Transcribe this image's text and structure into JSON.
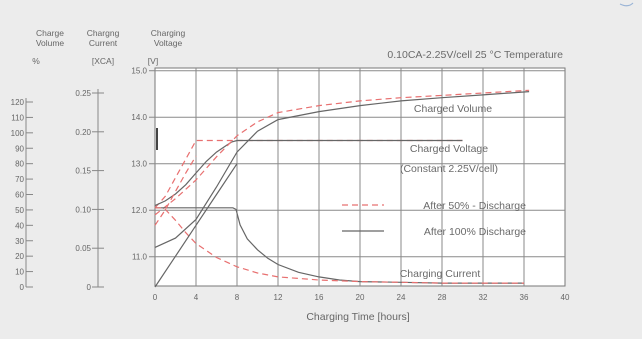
{
  "chart_data": {
    "type": "line",
    "title": "0.10CA-2.25V/cell 25 °C Temperature",
    "xlabel": "Charging Time [hours]",
    "x_ticks": [
      0,
      4,
      8,
      12,
      16,
      20,
      24,
      28,
      32,
      36,
      40
    ],
    "xlim": [
      0,
      40
    ],
    "grid": true,
    "axes": {
      "volume": {
        "head": [
          "Charge",
          "Volume",
          "%"
        ],
        "ticks": [
          0,
          10,
          20,
          30,
          40,
          50,
          60,
          70,
          80,
          90,
          100,
          110,
          120
        ],
        "ylim": [
          0,
          120
        ]
      },
      "current": {
        "head": [
          "Chargng",
          "Current",
          "[XCA]"
        ],
        "ticks": [
          "0",
          "0.05",
          "0.10",
          "0.15",
          "0.20",
          "0.25"
        ],
        "ylim": [
          0,
          0.25
        ]
      },
      "voltage": {
        "head": [
          "Charging",
          "Voltage",
          "[V]"
        ],
        "ticks": [
          "11.0",
          "12.0",
          "13.0",
          "14.0",
          "15.0"
        ],
        "ylim": [
          10.5,
          15.0
        ]
      }
    },
    "annotations": [
      {
        "text": "Charged Volume"
      },
      {
        "text": "Charged Voltage"
      },
      {
        "text": "(Constant  2.25V/cell)"
      },
      {
        "text": "Charging Current"
      }
    ],
    "legend": [
      {
        "name": "After 50% - Discharge",
        "color": "#e87070",
        "style": "dashed"
      },
      {
        "name": "After 100% Discharge",
        "color": "#666666",
        "style": "solid"
      }
    ],
    "series": [
      {
        "axis": "voltage",
        "style": "dashed",
        "color": "#e87070",
        "x": [
          0,
          1,
          2,
          3,
          4,
          8,
          12,
          16,
          20,
          24,
          28,
          30
        ],
        "y": [
          12.05,
          12.3,
          12.7,
          13.1,
          13.5,
          13.5,
          13.5,
          13.5,
          13.5,
          13.5,
          13.5,
          13.5
        ]
      },
      {
        "axis": "voltage",
        "style": "solid",
        "color": "#666666",
        "x": [
          0,
          1,
          2,
          3,
          4,
          5,
          6,
          7,
          7.5,
          8,
          12,
          16,
          20,
          24,
          28,
          30
        ],
        "y": [
          12.1,
          12.2,
          12.35,
          12.55,
          12.8,
          13.05,
          13.25,
          13.4,
          13.47,
          13.5,
          13.5,
          13.5,
          13.5,
          13.5,
          13.5,
          13.5
        ]
      },
      {
        "axis": "voltage",
        "style": "dashed",
        "color": "#e87070",
        "x": [
          0,
          2,
          4,
          6,
          8,
          10,
          12,
          16,
          20,
          24,
          28,
          32,
          36.5
        ],
        "y": [
          11.9,
          12.25,
          12.65,
          13.15,
          13.6,
          13.9,
          14.1,
          14.25,
          14.35,
          14.42,
          14.47,
          14.52,
          14.58
        ]
      },
      {
        "axis": "voltage",
        "style": "solid",
        "color": "#666666",
        "x": [
          0,
          2,
          4,
          6,
          8,
          10,
          12,
          16,
          20,
          24,
          28,
          32,
          36.5
        ],
        "y": [
          11.2,
          11.4,
          11.8,
          12.5,
          13.25,
          13.7,
          13.95,
          14.12,
          14.25,
          14.35,
          14.42,
          14.48,
          14.55
        ]
      },
      {
        "axis": "current",
        "style": "solid",
        "color": "#666666",
        "x": [
          0,
          7.6,
          7.9,
          8.3,
          9,
          10,
          11,
          12,
          14,
          16,
          18,
          20,
          24,
          28,
          32,
          36
        ],
        "y": [
          0.102,
          0.102,
          0.1,
          0.08,
          0.062,
          0.048,
          0.037,
          0.029,
          0.019,
          0.013,
          0.009,
          0.007,
          0.006,
          0.005,
          0.005,
          0.005
        ]
      },
      {
        "axis": "current",
        "style": "dashed",
        "color": "#e87070",
        "x": [
          0,
          0.5,
          1,
          2,
          3,
          4,
          6,
          8,
          10,
          12,
          16,
          20,
          24,
          28,
          32,
          36
        ],
        "y": [
          0.102,
          0.102,
          0.1,
          0.086,
          0.07,
          0.056,
          0.038,
          0.026,
          0.018,
          0.013,
          0.009,
          0.007,
          0.006,
          0.005,
          0.005,
          0.005
        ]
      },
      {
        "axis": "volume",
        "style": "solid",
        "color": "#666666",
        "x": [
          0,
          2,
          4,
          6,
          8
        ],
        "y": [
          0,
          20,
          40,
          60,
          80
        ]
      },
      {
        "axis": "volume",
        "style": "dashed",
        "color": "#e87070",
        "x": [
          0,
          1,
          2,
          3,
          4
        ],
        "y": [
          40,
          50,
          62,
          74,
          85
        ]
      }
    ]
  }
}
